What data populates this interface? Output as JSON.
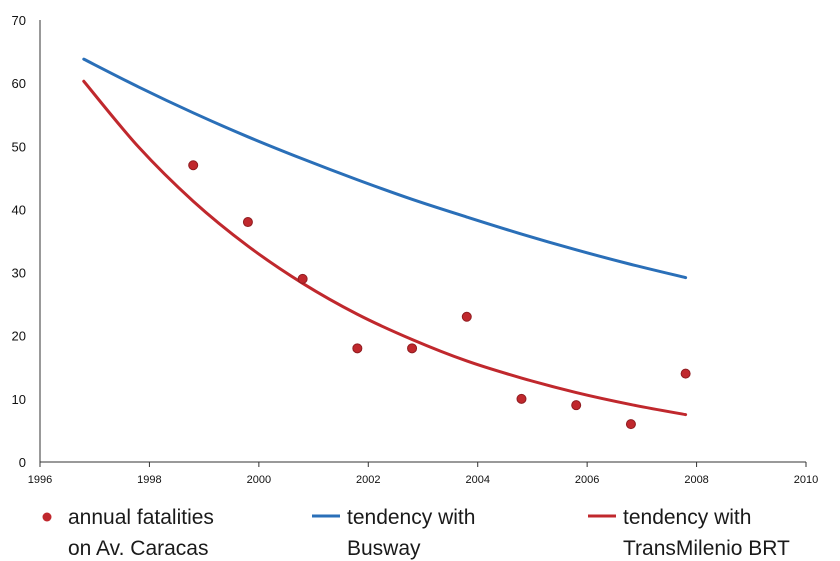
{
  "chart_data": {
    "type": "scatter",
    "title": "",
    "xlabel": "",
    "ylabel": "",
    "xlim": [
      1996,
      2010
    ],
    "ylim": [
      0,
      70
    ],
    "x_ticks": [
      "1996",
      "1998",
      "2000",
      "2002",
      "2004",
      "2006",
      "2008",
      "2010"
    ],
    "y_ticks": [
      "0",
      "10",
      "20",
      "30",
      "40",
      "50",
      "60",
      "70"
    ],
    "grid": false,
    "legend_position": "bottom",
    "series": [
      {
        "name": "annual fatalities on Av. Caracas",
        "legend_lines": [
          "annual fatalities",
          "on Av. Caracas"
        ],
        "kind": "scatter",
        "color": "#c0282d",
        "x": [
          1998.8,
          1999.8,
          2000.8,
          2001.8,
          2002.8,
          2003.8,
          2004.8,
          2005.8,
          2006.8,
          2007.8
        ],
        "y": [
          47,
          38,
          29,
          18,
          18,
          23,
          10,
          9,
          6,
          14
        ]
      },
      {
        "name": "tendency with Busway",
        "legend_lines": [
          "tendency with",
          "Busway"
        ],
        "kind": "line",
        "color": "#2a6fb8",
        "x": [
          1996.8,
          1997.8,
          1998.8,
          1999.8,
          2000.8,
          2001.8,
          2002.8,
          2003.8,
          2004.8,
          2005.8,
          2006.8,
          2007.8
        ],
        "y": [
          63.8,
          59.4,
          55.3,
          51.5,
          48.0,
          44.7,
          41.6,
          38.8,
          36.1,
          33.6,
          31.3,
          29.2
        ]
      },
      {
        "name": "tendency with TransMilenio BRT",
        "legend_lines": [
          "tendency with",
          "TransMilenio BRT"
        ],
        "kind": "line",
        "color": "#c0282d",
        "x": [
          1996.8,
          1997.8,
          1998.8,
          1999.8,
          2000.8,
          2001.8,
          2002.8,
          2003.8,
          2004.8,
          2005.8,
          2006.8,
          2007.8
        ],
        "y": [
          60.3,
          49.9,
          41.3,
          34.2,
          28.3,
          23.4,
          19.4,
          16.0,
          13.3,
          11.0,
          9.1,
          7.5
        ]
      }
    ]
  }
}
